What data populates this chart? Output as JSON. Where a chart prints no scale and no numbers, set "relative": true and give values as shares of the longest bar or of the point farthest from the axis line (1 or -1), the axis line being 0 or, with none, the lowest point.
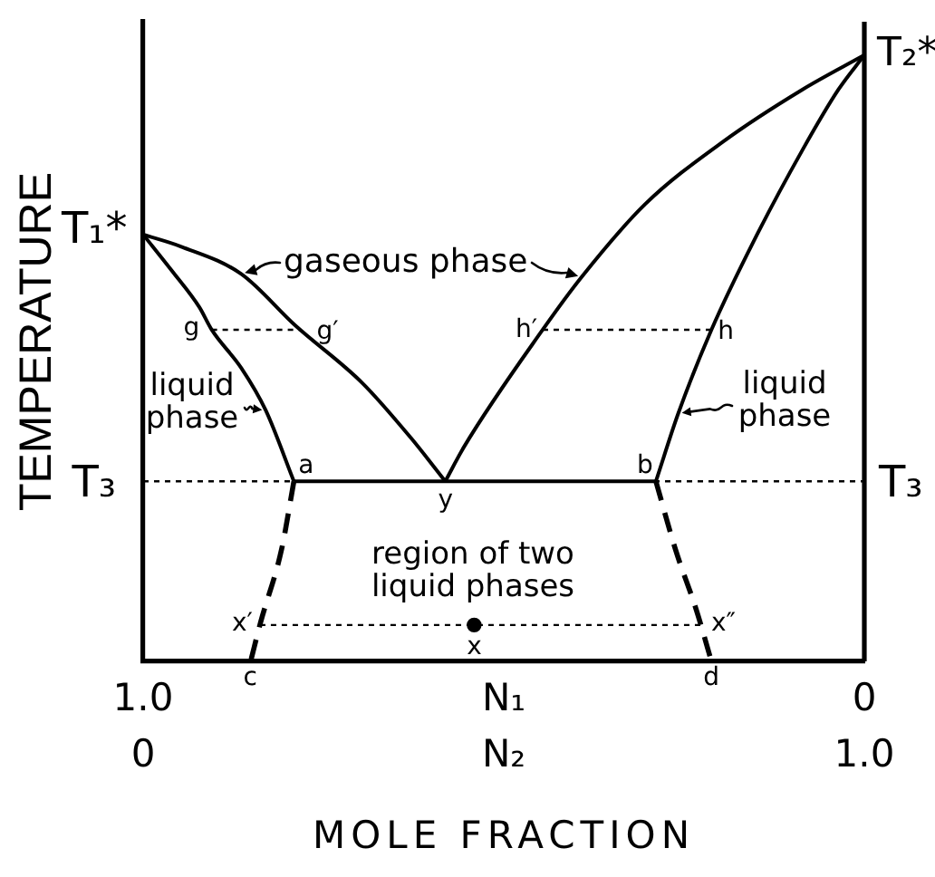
{
  "chart_data": {
    "type": "line",
    "relative": true,
    "ylabel": "TEMPERATURE",
    "xlabel": "N₂",
    "x2label": "N₁",
    "xlim": [
      0,
      1
    ],
    "xticks": [
      0,
      {
        "value": 1,
        "label": "1.0"
      }
    ],
    "x2lim": [
      1,
      0
    ],
    "x2ticks": [
      {
        "value": 1,
        "label": "1.0"
      },
      0
    ],
    "series": [
      {
        "type": "line",
        "color": "#000000",
        "x": [
          0,
          0.053,
          0.136,
          0.211,
          0.304,
          0.371,
          0.419
        ],
        "values": [
          0.704,
          0.684,
          0.639,
          0.554,
          0.459,
          0.369,
          0.297
        ]
      },
      {
        "type": "line",
        "color": "#000000",
        "x": [
          0,
          0.04,
          0.078,
          0.095,
          0.136,
          0.17,
          0.209
        ],
        "values": [
          0.704,
          0.644,
          0.584,
          0.547,
          0.484,
          0.414,
          0.297
        ]
      },
      {
        "type": "line",
        "color": "#000000",
        "x": [
          0.419,
          0.445,
          0.554,
          0.608,
          0.696,
          0.805,
          0.914,
          1
        ],
        "values": [
          0.297,
          0.354,
          0.547,
          0.634,
          0.754,
          0.858,
          0.943,
          1
        ]
      },
      {
        "type": "line",
        "color": "#000000",
        "x": [
          0.711,
          0.742,
          0.788,
          0.847,
          0.914,
          0.964,
          1
        ],
        "values": [
          0.297,
          0.409,
          0.547,
          0.694,
          0.843,
          0.943,
          1
        ]
      },
      {
        "type": "line",
        "color": "#000000",
        "x": [
          0.209,
          0.711
        ],
        "values": [
          0.297,
          0.297
        ]
      },
      {
        "type": "line",
        "color": "#000000",
        "line_style": "dashed",
        "x": [
          0.209,
          0.192,
          0.163,
          0.149
        ],
        "values": [
          0.297,
          0.185,
          0.065,
          0
        ]
      },
      {
        "type": "line",
        "color": "#000000",
        "line_style": "dashed",
        "x": [
          0.711,
          0.738,
          0.767,
          0.788
        ],
        "values": [
          0.297,
          0.185,
          0.085,
          0
        ]
      },
      {
        "type": "line",
        "color": "#000000",
        "line_style": "dotted",
        "x": [
          0.095,
          0.218
        ],
        "values": [
          0.547,
          0.547
        ]
      },
      {
        "type": "line",
        "color": "#000000",
        "line_style": "dotted",
        "x": [
          0.554,
          0.788
        ],
        "values": [
          0.547,
          0.547
        ]
      },
      {
        "type": "line",
        "color": "#000000",
        "line_style": "dotted",
        "x": [
          0.162,
          0.775
        ],
        "values": [
          0.06,
          0.06
        ]
      },
      {
        "type": "scatter",
        "color": "#000000",
        "marker": "circle",
        "x": [
          0.459
        ],
        "values": [
          0.06
        ]
      }
    ],
    "ref_lines": [
      {
        "axis": "y",
        "value": 0.297,
        "label": "T₃",
        "line_style": "dotted"
      }
    ],
    "annotations": [
      "MOLE FRACTION",
      "gaseous phase",
      "liquid phase",
      "liquid phase",
      "region of two liquid phases",
      {
        "text": "T₁*",
        "x": 0,
        "y": 0.704
      },
      {
        "text": "T₂*",
        "x": 1,
        "y": 1
      },
      {
        "text": "g",
        "x": 0.095,
        "y": 0.547
      },
      {
        "text": "g′",
        "x": 0.218,
        "y": 0.547
      },
      {
        "text": "h′",
        "x": 0.554,
        "y": 0.547
      },
      {
        "text": "h",
        "x": 0.788,
        "y": 0.547
      },
      {
        "text": "a",
        "x": 0.209,
        "y": 0.297
      },
      {
        "text": "b",
        "x": 0.711,
        "y": 0.297
      },
      {
        "text": "y",
        "x": 0.419,
        "y": 0.297
      },
      {
        "text": "x′",
        "x": 0.162,
        "y": 0.06
      },
      {
        "text": "x″",
        "x": 0.775,
        "y": 0.06
      },
      {
        "text": "x",
        "x": 0.459,
        "y": 0.06
      },
      {
        "text": "c",
        "x": 0.149,
        "y": 0
      },
      {
        "text": "d",
        "x": 0.788,
        "y": 0
      }
    ]
  }
}
